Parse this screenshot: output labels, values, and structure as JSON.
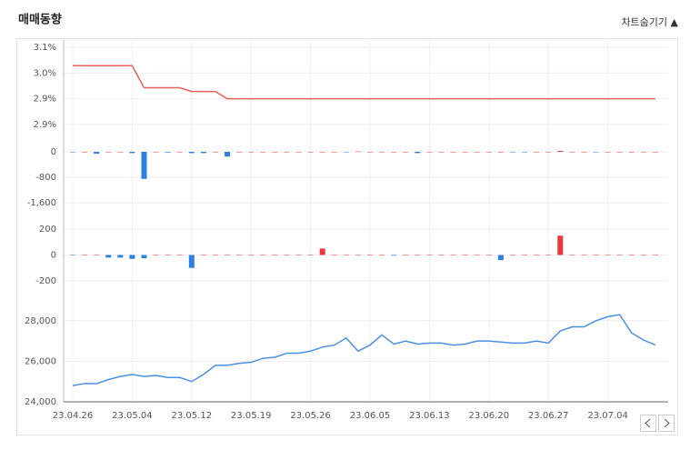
{
  "header": {
    "title": "매매동향",
    "toggle": "차트숨기기 ▲"
  },
  "chart_data": [
    {
      "type": "line",
      "color": "#e8605a",
      "ylim": [
        2.85,
        3.06
      ],
      "yticks": [
        {
          "value": 3.06,
          "label": "3.1%"
        },
        {
          "value": 2.99,
          "label": "3.0%"
        },
        {
          "value": 2.92,
          "label": "2.9%"
        },
        {
          "value": 2.85,
          "label": "2.9%"
        }
      ],
      "grid": true,
      "values": [
        3.01,
        3.01,
        3.01,
        3.01,
        3.01,
        3.01,
        2.95,
        2.95,
        2.95,
        2.95,
        2.94,
        2.94,
        2.94,
        2.92,
        2.92,
        2.92,
        2.92,
        2.92,
        2.92,
        2.92,
        2.92,
        2.92,
        2.92,
        2.92,
        2.92,
        2.92,
        2.92,
        2.92,
        2.92,
        2.92,
        2.92,
        2.92,
        2.92,
        2.92,
        2.92,
        2.92,
        2.92,
        2.92,
        2.92,
        2.92,
        2.92,
        2.92,
        2.92,
        2.92,
        2.92,
        2.92,
        2.92,
        2.92,
        2.92,
        2.92
      ]
    },
    {
      "type": "bar",
      "up_color": "#e8383d",
      "down_color": "#2d7fe0",
      "ylim": [
        -2000,
        400
      ],
      "yticks": [
        0,
        -800,
        {
          "value": -1600,
          "label": "-1,600"
        }
      ],
      "grid": true,
      "values": [
        -10,
        0,
        -60,
        0,
        0,
        -40,
        -850,
        0,
        -20,
        0,
        -40,
        -40,
        0,
        -150,
        0,
        0,
        0,
        0,
        0,
        0,
        0,
        0,
        0,
        -10,
        10,
        0,
        0,
        0,
        0,
        -40,
        0,
        0,
        0,
        0,
        0,
        0,
        0,
        -10,
        -10,
        0,
        0,
        30,
        0,
        0,
        -10,
        0,
        0,
        0,
        0,
        0
      ]
    },
    {
      "type": "bar",
      "up_color": "#e8383d",
      "down_color": "#2d7fe0",
      "ylim": [
        -300,
        300
      ],
      "yticks": [
        200,
        0,
        -200
      ],
      "grid": true,
      "values": [
        -3,
        0,
        3,
        -20,
        -20,
        -30,
        -25,
        0,
        0,
        0,
        -100,
        0,
        0,
        0,
        0,
        0,
        0,
        0,
        0,
        0,
        0,
        50,
        0,
        0,
        0,
        0,
        0,
        -5,
        0,
        0,
        0,
        0,
        0,
        0,
        0,
        0,
        -40,
        0,
        0,
        0,
        0,
        150,
        0,
        0,
        0,
        0,
        0,
        0,
        0,
        0
      ]
    },
    {
      "type": "line",
      "color": "#4a90e2",
      "ylim": [
        24000,
        28800
      ],
      "yticks": [
        {
          "value": 28000,
          "label": "28,000"
        },
        {
          "value": 26000,
          "label": "26,000"
        },
        {
          "value": 24000,
          "label": "24,000"
        }
      ],
      "grid": true,
      "categories": [
        "23.04.26",
        null,
        null,
        null,
        null,
        "23.05.04",
        null,
        null,
        null,
        null,
        "23.05.12",
        null,
        null,
        null,
        null,
        "23.05.19",
        null,
        null,
        null,
        null,
        "23.05.26",
        null,
        null,
        null,
        null,
        "23.06.05",
        null,
        null,
        null,
        null,
        "23.06.13",
        null,
        null,
        null,
        null,
        "23.06.20",
        null,
        null,
        null,
        null,
        "23.06.27",
        null,
        null,
        null,
        null,
        "23.07.04",
        null,
        null,
        null,
        null
      ],
      "values": [
        24800,
        24900,
        24900,
        25100,
        25250,
        25350,
        25250,
        25300,
        25200,
        25200,
        25000,
        25350,
        25800,
        25800,
        25900,
        25950,
        26150,
        26200,
        26400,
        26400,
        26500,
        26700,
        26800,
        27150,
        26500,
        26800,
        27300,
        26850,
        27000,
        26850,
        26900,
        26900,
        26800,
        26850,
        27000,
        27000,
        26950,
        26900,
        26900,
        27000,
        26900,
        27500,
        27700,
        27700,
        28000,
        28200,
        28300,
        27400,
        27050,
        26800
      ]
    }
  ]
}
